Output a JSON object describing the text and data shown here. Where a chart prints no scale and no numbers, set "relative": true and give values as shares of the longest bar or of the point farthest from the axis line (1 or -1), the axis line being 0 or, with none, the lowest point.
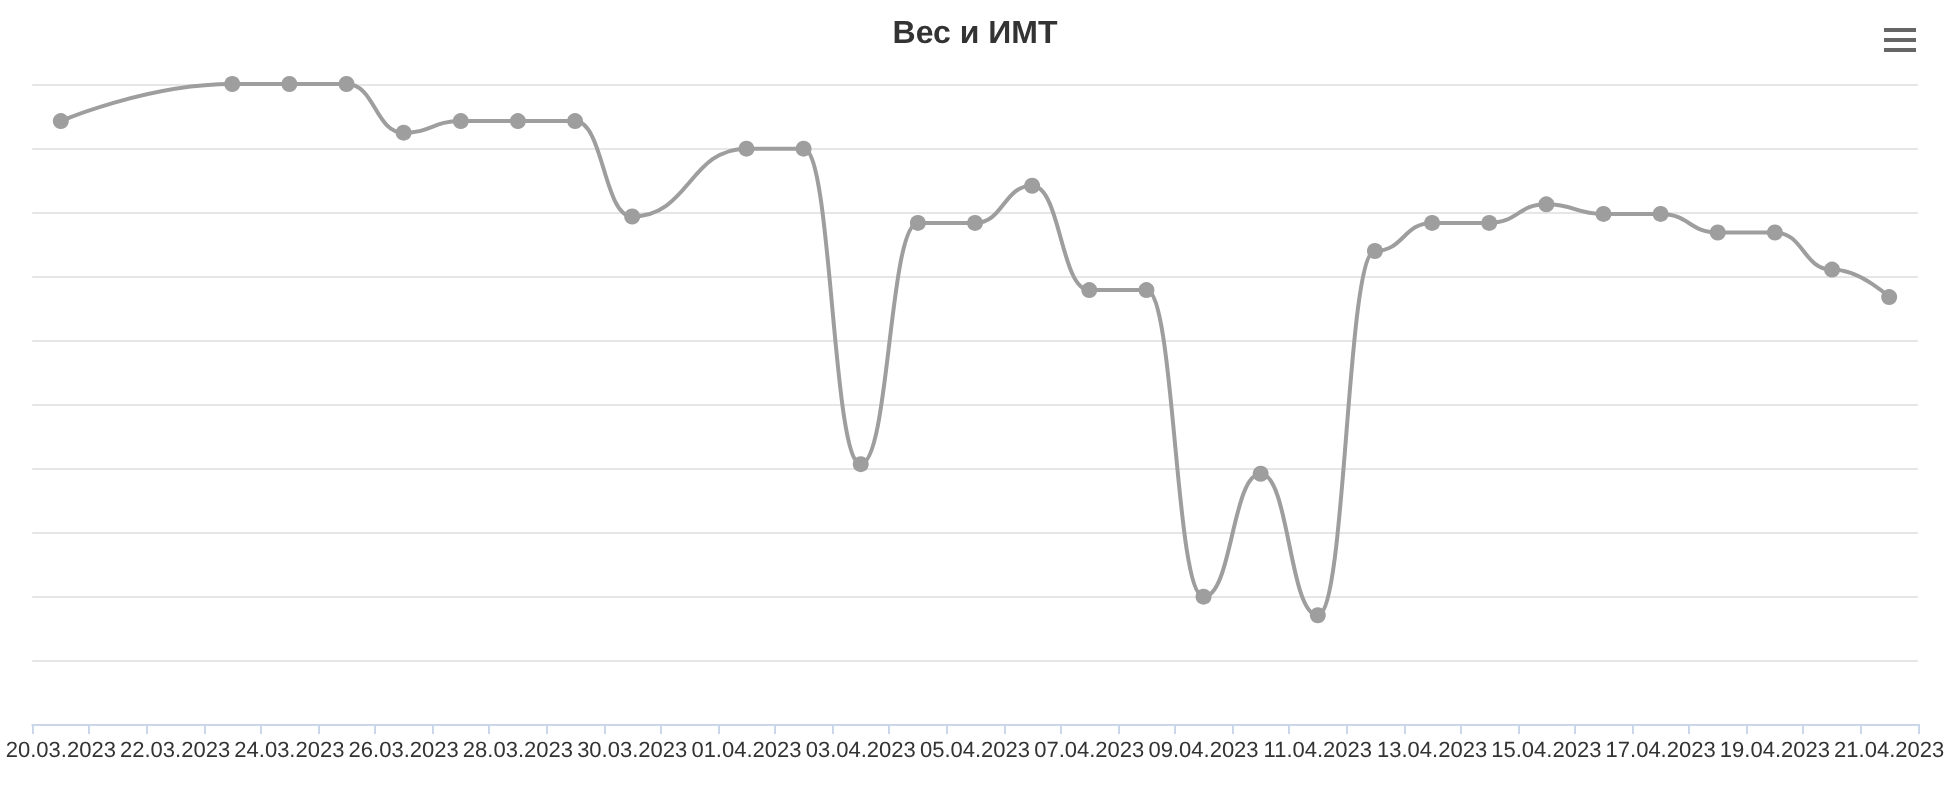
{
  "chart_data": {
    "type": "line",
    "title": "Вес и ИМТ",
    "relative": true,
    "grid": "y",
    "marker": "circle",
    "categories": [
      "20.03.2023",
      null,
      "22.03.2023",
      null,
      "24.03.2023",
      null,
      "26.03.2023",
      null,
      "28.03.2023",
      null,
      "30.03.2023",
      null,
      "01.04.2023",
      null,
      "03.04.2023",
      null,
      "05.04.2023",
      null,
      "07.04.2023",
      null,
      "09.04.2023",
      null,
      "11.04.2023",
      null,
      "13.04.2023",
      null,
      "15.04.2023",
      null,
      "17.04.2023",
      null,
      "19.04.2023",
      null,
      "21.04.2023"
    ],
    "series": [
      {
        "color": "#9e9e9e",
        "values": [
          0.942,
          null,
          null,
          1,
          1,
          1,
          0.924,
          0.942,
          0.942,
          0.942,
          0.793,
          null,
          0.899,
          0.899,
          0.406,
          0.783,
          0.783,
          0.841,
          0.678,
          0.678,
          0.199,
          0.391,
          0.17,
          0.739,
          0.783,
          0.783,
          0.812,
          0.797,
          0.797,
          0.768,
          0.768,
          0.71,
          0.667
        ]
      }
    ]
  }
}
